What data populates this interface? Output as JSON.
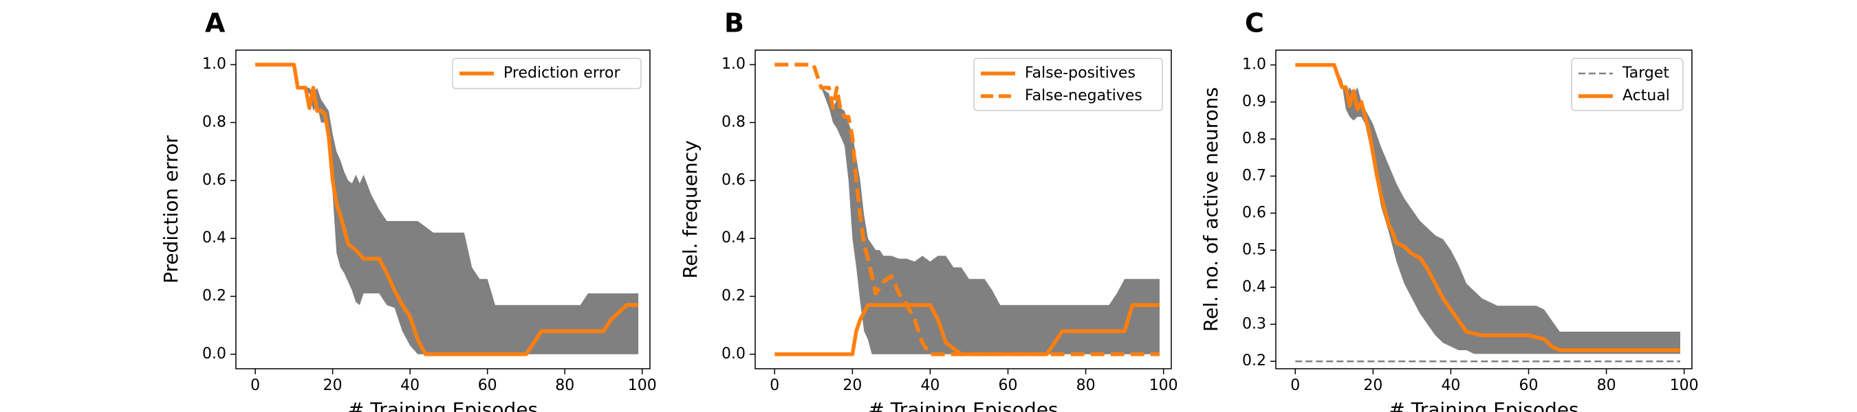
{
  "colors": {
    "accent": "#ff7f0e",
    "band": "#808080",
    "target": "#808080",
    "axis": "#000000"
  },
  "chart_data": [
    {
      "type": "line",
      "panel_label": "A",
      "xlabel": "# Training Episodes",
      "ylabel": "Prediction error",
      "xlim": [
        -5,
        102
      ],
      "ylim": [
        -0.05,
        1.05
      ],
      "xticks": [
        0,
        20,
        40,
        60,
        80,
        100
      ],
      "yticks": [
        0.0,
        0.2,
        0.4,
        0.6,
        0.8,
        1.0
      ],
      "ytick_labels": [
        "0.0",
        "0.2",
        "0.4",
        "0.6",
        "0.8",
        "1.0"
      ],
      "legend_position": "upper right",
      "band": {
        "x": [
          10,
          12,
          14,
          15,
          16,
          17,
          18,
          19,
          20,
          21,
          22,
          23,
          24,
          25,
          26,
          27,
          28,
          30,
          32,
          34,
          36,
          38,
          40,
          42,
          44,
          46,
          48,
          50,
          52,
          54,
          56,
          58,
          60,
          62,
          64,
          66,
          68,
          70,
          72,
          74,
          76,
          78,
          80,
          84,
          86,
          88,
          90,
          92,
          94,
          96,
          99
        ],
        "upper": [
          1.0,
          0.92,
          0.92,
          0.9,
          0.92,
          0.88,
          0.86,
          0.84,
          0.76,
          0.7,
          0.67,
          0.63,
          0.6,
          0.59,
          0.62,
          0.59,
          0.62,
          0.55,
          0.5,
          0.46,
          0.46,
          0.46,
          0.46,
          0.46,
          0.44,
          0.42,
          0.42,
          0.42,
          0.42,
          0.42,
          0.3,
          0.26,
          0.26,
          0.17,
          0.17,
          0.17,
          0.17,
          0.17,
          0.17,
          0.17,
          0.17,
          0.17,
          0.17,
          0.17,
          0.21,
          0.21,
          0.21,
          0.21,
          0.21,
          0.21,
          0.21
        ],
        "lower": [
          1.0,
          0.92,
          0.9,
          0.84,
          0.86,
          0.8,
          0.8,
          0.75,
          0.55,
          0.35,
          0.3,
          0.28,
          0.25,
          0.22,
          0.18,
          0.17,
          0.21,
          0.21,
          0.21,
          0.17,
          0.16,
          0.08,
          0.03,
          0.0,
          0.0,
          0.0,
          0.0,
          0.0,
          0.0,
          0.0,
          0.0,
          0.0,
          0.0,
          0.0,
          0.0,
          0.0,
          0.0,
          0.0,
          0.0,
          0.0,
          0.0,
          0.0,
          0.0,
          0.0,
          0.0,
          0.0,
          0.0,
          0.0,
          0.0,
          0.0,
          0.0
        ]
      },
      "series": [
        {
          "name": "Prediction error",
          "style": "solid",
          "x": [
            0,
            10,
            11,
            13,
            14,
            15,
            16,
            17,
            18,
            19,
            20,
            21,
            22,
            24,
            26,
            28,
            30,
            32,
            34,
            36,
            38,
            40,
            42,
            44,
            46,
            50,
            60,
            70,
            72,
            74,
            80,
            90,
            92,
            96,
            99
          ],
          "y": [
            1.0,
            1.0,
            0.92,
            0.92,
            0.85,
            0.92,
            0.84,
            0.84,
            0.83,
            0.75,
            0.6,
            0.52,
            0.48,
            0.38,
            0.36,
            0.33,
            0.33,
            0.33,
            0.28,
            0.22,
            0.17,
            0.13,
            0.05,
            0.0,
            0.0,
            0.0,
            0.0,
            0.0,
            0.04,
            0.08,
            0.08,
            0.08,
            0.12,
            0.17,
            0.17
          ]
        }
      ]
    },
    {
      "type": "line",
      "panel_label": "B",
      "xlabel": "# Training Episodes",
      "ylabel": "Rel. frequency",
      "xlim": [
        -5,
        102
      ],
      "ylim": [
        -0.05,
        1.05
      ],
      "xticks": [
        0,
        20,
        40,
        60,
        80,
        100
      ],
      "yticks": [
        0.0,
        0.2,
        0.4,
        0.6,
        0.8,
        1.0
      ],
      "ytick_labels": [
        "0.0",
        "0.2",
        "0.4",
        "0.6",
        "0.8",
        "1.0"
      ],
      "legend_position": "upper right",
      "band": {
        "x": [
          12,
          14,
          15,
          16,
          17,
          18,
          19,
          20,
          21,
          22,
          23,
          24,
          25,
          26,
          27,
          28,
          30,
          32,
          34,
          36,
          38,
          40,
          42,
          44,
          46,
          48,
          50,
          52,
          54,
          56,
          58,
          60,
          62,
          64,
          66,
          68,
          70,
          72,
          74,
          76,
          78,
          80,
          82,
          84,
          86,
          88,
          90,
          92,
          99
        ],
        "upper": [
          0.92,
          0.9,
          0.85,
          0.88,
          0.85,
          0.84,
          0.8,
          0.76,
          0.68,
          0.6,
          0.48,
          0.4,
          0.38,
          0.36,
          0.36,
          0.34,
          0.34,
          0.33,
          0.33,
          0.32,
          0.34,
          0.32,
          0.34,
          0.34,
          0.3,
          0.3,
          0.26,
          0.26,
          0.26,
          0.22,
          0.17,
          0.17,
          0.17,
          0.17,
          0.17,
          0.17,
          0.17,
          0.17,
          0.17,
          0.17,
          0.17,
          0.17,
          0.17,
          0.17,
          0.17,
          0.21,
          0.26,
          0.26,
          0.26
        ],
        "lower": [
          0.92,
          0.85,
          0.8,
          0.78,
          0.75,
          0.72,
          0.6,
          0.4,
          0.3,
          0.18,
          0.08,
          0.05,
          0.0,
          0.0,
          0.0,
          0.0,
          0.0,
          0.0,
          0.0,
          0.0,
          0.0,
          0.0,
          0.0,
          0.0,
          0.0,
          0.0,
          0.0,
          0.0,
          0.0,
          0.0,
          0.0,
          0.0,
          0.0,
          0.0,
          0.0,
          0.0,
          0.0,
          0.0,
          0.0,
          0.0,
          0.0,
          0.0,
          0.0,
          0.0,
          0.0,
          0.0,
          0.0,
          0.0,
          0.0
        ]
      },
      "series": [
        {
          "name": "False-positives",
          "style": "solid",
          "x": [
            0,
            20,
            21,
            22,
            24,
            30,
            38,
            40,
            42,
            44,
            48,
            60,
            70,
            72,
            74,
            80,
            90,
            92,
            99
          ],
          "y": [
            0.0,
            0.0,
            0.08,
            0.12,
            0.17,
            0.17,
            0.17,
            0.17,
            0.12,
            0.04,
            0.0,
            0.0,
            0.0,
            0.04,
            0.08,
            0.08,
            0.08,
            0.17,
            0.17
          ]
        },
        {
          "name": "False-negatives",
          "style": "dashed",
          "x": [
            0,
            10,
            12,
            14,
            15,
            16,
            17,
            18,
            19,
            20,
            21,
            22,
            23,
            24,
            26,
            28,
            30,
            32,
            34,
            36,
            38,
            40,
            42,
            50,
            60,
            70,
            80,
            90,
            99
          ],
          "y": [
            1.0,
            1.0,
            0.92,
            0.92,
            0.85,
            0.92,
            0.84,
            0.82,
            0.82,
            0.75,
            0.6,
            0.48,
            0.38,
            0.33,
            0.21,
            0.25,
            0.27,
            0.21,
            0.17,
            0.12,
            0.04,
            0.0,
            0.0,
            0.0,
            0.0,
            0.0,
            0.0,
            0.0,
            0.0
          ]
        }
      ]
    },
    {
      "type": "line",
      "panel_label": "C",
      "xlabel": "# Training Episodes",
      "ylabel": "Rel. no. of active neurons",
      "xlim": [
        -5,
        102
      ],
      "ylim": [
        0.18,
        1.04
      ],
      "xticks": [
        0,
        20,
        40,
        60,
        80,
        100
      ],
      "yticks": [
        0.2,
        0.3,
        0.4,
        0.5,
        0.6,
        0.7,
        0.8,
        0.9,
        1.0
      ],
      "ytick_labels": [
        "0.2",
        "0.3",
        "0.4",
        "0.5",
        "0.6",
        "0.7",
        "0.8",
        "0.9",
        "1.0"
      ],
      "legend_position": "upper right",
      "band": {
        "x": [
          10,
          12,
          13,
          14,
          15,
          16,
          17,
          18,
          20,
          22,
          24,
          26,
          28,
          30,
          32,
          34,
          36,
          38,
          40,
          42,
          44,
          46,
          48,
          50,
          52,
          54,
          56,
          58,
          60,
          62,
          64,
          66,
          68,
          70,
          80,
          90,
          99
        ],
        "upper": [
          1.0,
          0.96,
          0.92,
          0.94,
          0.92,
          0.94,
          0.9,
          0.88,
          0.84,
          0.78,
          0.73,
          0.68,
          0.64,
          0.61,
          0.58,
          0.56,
          0.54,
          0.53,
          0.5,
          0.46,
          0.41,
          0.39,
          0.37,
          0.36,
          0.35,
          0.35,
          0.35,
          0.35,
          0.35,
          0.35,
          0.34,
          0.31,
          0.28,
          0.28,
          0.28,
          0.28,
          0.28
        ],
        "lower": [
          1.0,
          0.95,
          0.88,
          0.86,
          0.85,
          0.86,
          0.86,
          0.84,
          0.74,
          0.62,
          0.55,
          0.47,
          0.41,
          0.37,
          0.33,
          0.3,
          0.27,
          0.25,
          0.24,
          0.23,
          0.23,
          0.22,
          0.22,
          0.22,
          0.22,
          0.22,
          0.22,
          0.22,
          0.22,
          0.22,
          0.22,
          0.22,
          0.22,
          0.22,
          0.22,
          0.22,
          0.22
        ]
      },
      "series": [
        {
          "name": "Target",
          "style": "thin-dashed",
          "x": [
            0,
            99
          ],
          "y": [
            0.2,
            0.2
          ]
        },
        {
          "name": "Actual",
          "style": "solid",
          "x": [
            0,
            10,
            12,
            13,
            14,
            15,
            16,
            17,
            18,
            19,
            20,
            21,
            22,
            23,
            24,
            25,
            26,
            28,
            30,
            32,
            34,
            36,
            38,
            40,
            42,
            44,
            46,
            48,
            50,
            56,
            60,
            64,
            66,
            68,
            70,
            80,
            90,
            99
          ],
          "y": [
            1.0,
            1.0,
            0.94,
            0.94,
            0.89,
            0.93,
            0.88,
            0.9,
            0.86,
            0.82,
            0.76,
            0.7,
            0.65,
            0.61,
            0.57,
            0.55,
            0.52,
            0.51,
            0.49,
            0.48,
            0.45,
            0.41,
            0.37,
            0.34,
            0.31,
            0.28,
            0.275,
            0.27,
            0.27,
            0.27,
            0.27,
            0.26,
            0.24,
            0.23,
            0.23,
            0.23,
            0.23,
            0.23
          ]
        }
      ]
    }
  ]
}
